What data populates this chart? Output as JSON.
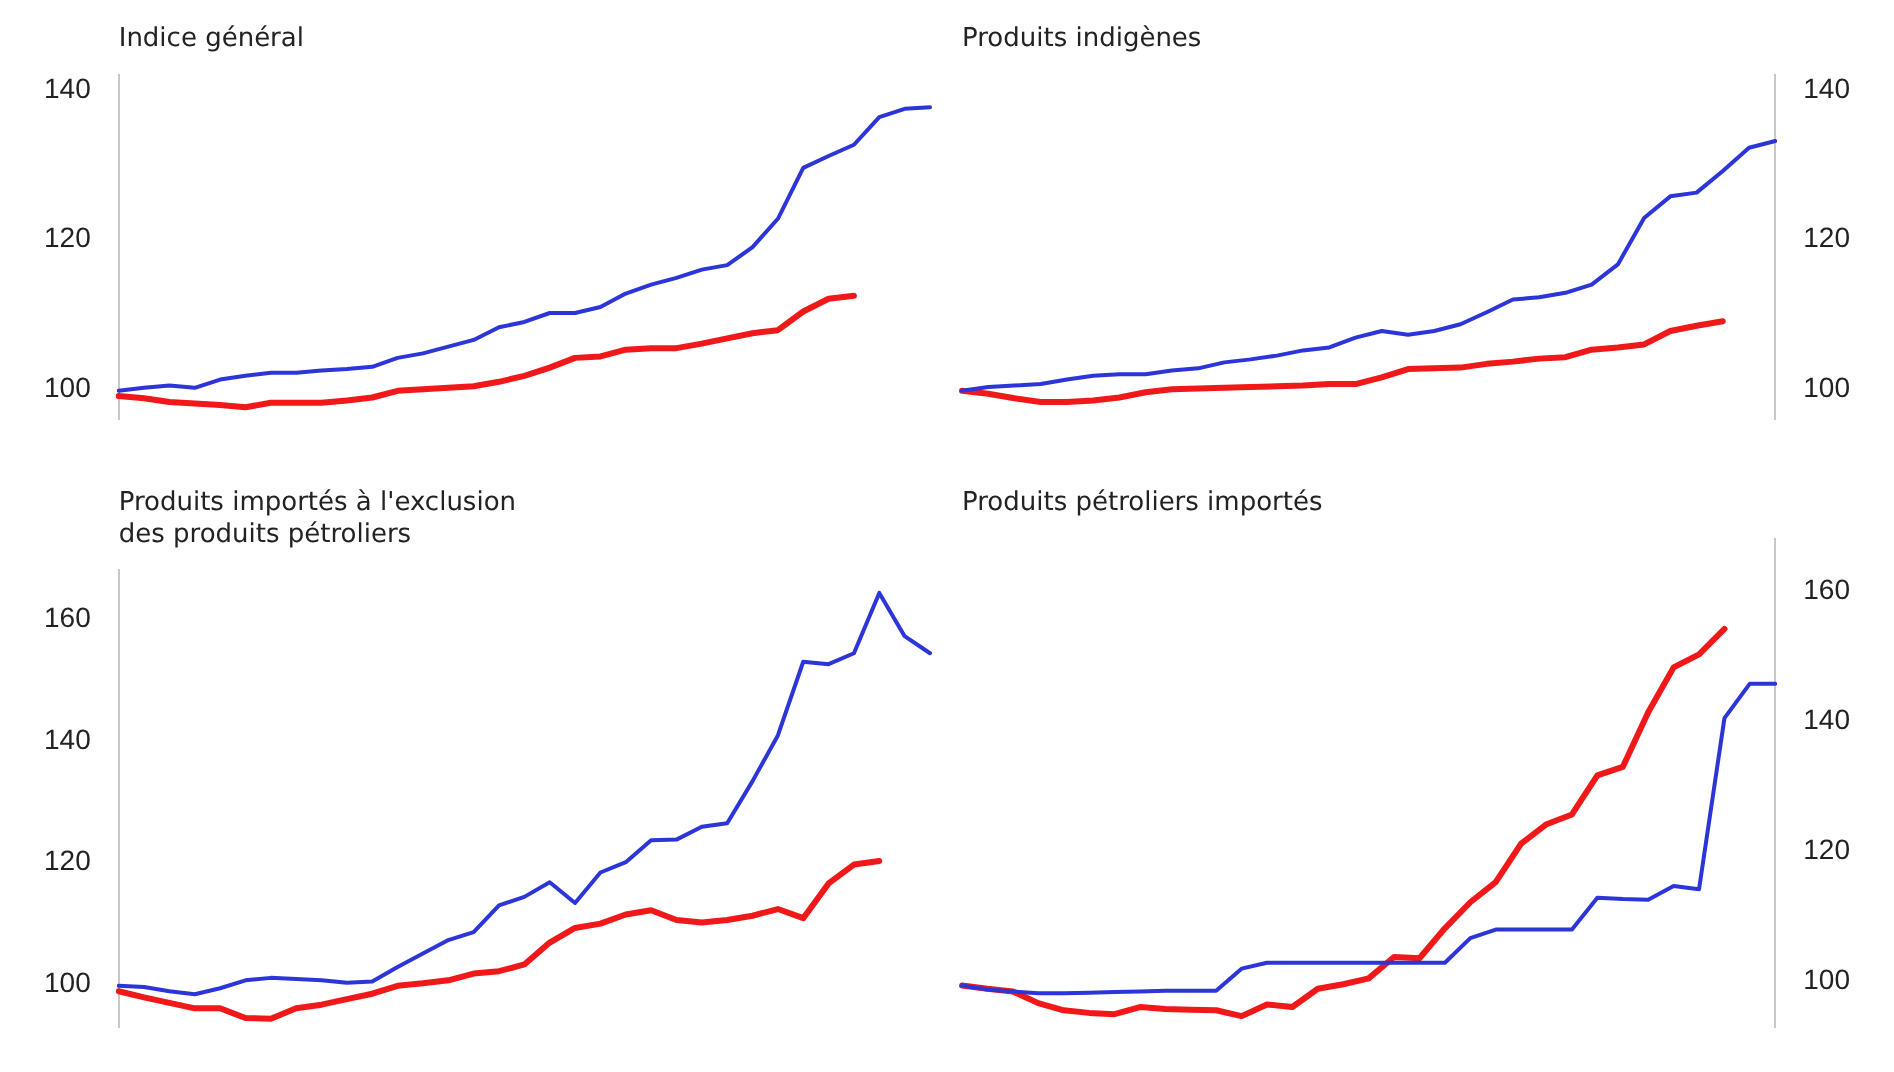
{
  "chart_data": [
    {
      "type": "line",
      "title": "Indice général",
      "categories": [
        null,
        null,
        null,
        null,
        null,
        null,
        null,
        null,
        null,
        null,
        null,
        null,
        null,
        null,
        null,
        null,
        null,
        null,
        null,
        null,
        null,
        null,
        null,
        null,
        null,
        null,
        null,
        null,
        null,
        null,
        null,
        null,
        null
      ],
      "ylim": [
        96,
        142
      ],
      "yticks": [
        100,
        120,
        140
      ],
      "grid": false,
      "legend": false,
      "series": [
        {
          "color": "#2b35d8",
          "values": [
            99.8,
            100.2,
            100.5,
            100.2,
            101.3,
            101.8,
            102.2,
            102.2,
            102.5,
            102.7,
            103,
            104.2,
            104.8,
            105.7,
            106.6,
            108.3,
            109,
            110.2,
            110.2,
            111,
            112.8,
            114,
            114.9,
            116,
            116.6,
            119,
            122.8,
            129.6,
            131.2,
            132.7,
            136.4,
            137.5,
            137.7
          ]
        },
        {
          "color": "#f01818",
          "values": [
            99.1,
            98.8,
            98.3,
            98.1,
            97.9,
            97.6,
            98.2,
            98.2,
            98.2,
            98.5,
            98.9,
            99.8,
            100,
            100.2,
            100.4,
            101,
            101.8,
            102.9,
            104.2,
            104.4,
            105.3,
            105.5,
            105.5,
            106.1,
            106.8,
            107.5,
            107.9,
            110.4,
            112.1,
            112.5,
            null,
            null,
            null
          ]
        }
      ]
    },
    {
      "type": "line",
      "title": "Produits indigènes",
      "categories": [
        null,
        null,
        null,
        null,
        null,
        null,
        null,
        null,
        null,
        null,
        null,
        null,
        null,
        null,
        null,
        null,
        null,
        null,
        null,
        null,
        null,
        null,
        null,
        null,
        null,
        null,
        null,
        null,
        null,
        null,
        null,
        null
      ],
      "ylim": [
        96,
        142
      ],
      "yticks": [
        100,
        120,
        140
      ],
      "grid": false,
      "legend": false,
      "series": [
        {
          "color": "#2b35d8",
          "values": [
            99.8,
            100.3,
            100.5,
            100.7,
            101.3,
            101.8,
            102,
            102,
            102.5,
            102.8,
            103.6,
            104,
            104.5,
            105.2,
            105.6,
            106.9,
            107.8,
            107.3,
            107.8,
            108.7,
            110.3,
            112,
            112.3,
            112.9,
            114,
            116.7,
            122.9,
            125.8,
            126.3,
            129.2,
            132.3,
            133.2
          ]
        },
        {
          "color": "#f01818",
          "values": [
            99.8,
            99.4,
            98.8,
            98.3,
            98.3,
            98.5,
            98.9,
            99.6,
            100,
            100.1,
            100.2,
            100.3,
            100.4,
            100.5,
            100.7,
            100.7,
            101.6,
            102.7,
            102.8,
            102.9,
            103.4,
            103.7,
            104.1,
            104.3,
            105.3,
            105.6,
            106,
            107.8,
            108.5,
            109.1,
            null,
            null
          ]
        }
      ]
    },
    {
      "type": "line",
      "title": "Produits importés à l'exclusion des produits pétroliers",
      "categories": [
        null,
        null,
        null,
        null,
        null,
        null,
        null,
        null,
        null,
        null,
        null,
        null,
        null,
        null,
        null,
        null,
        null,
        null,
        null,
        null,
        null,
        null,
        null,
        null,
        null,
        null,
        null,
        null,
        null,
        null,
        null,
        null,
        null
      ],
      "ylim": [
        93,
        168
      ],
      "yticks": [
        100,
        120,
        140,
        160
      ],
      "grid": false,
      "legend": false,
      "series": [
        {
          "color": "#2b35d8",
          "values": [
            99.8,
            99.6,
            98.9,
            98.4,
            99.4,
            100.7,
            101.1,
            100.9,
            100.7,
            100.3,
            100.5,
            102.9,
            105.1,
            107.3,
            108.6,
            113,
            114.4,
            116.8,
            113.4,
            118.4,
            120.1,
            123.7,
            123.8,
            125.9,
            126.5,
            133.4,
            140.9,
            153,
            152.6,
            154.4,
            164.3,
            157.2,
            154.4
          ]
        },
        {
          "color": "#f01818",
          "values": [
            98.9,
            97.9,
            97,
            96.1,
            96.1,
            94.5,
            94.4,
            96.1,
            96.7,
            97.6,
            98.5,
            99.8,
            100.2,
            100.7,
            101.8,
            102.2,
            103.3,
            106.9,
            109.3,
            110,
            111.5,
            112.2,
            110.6,
            110.2,
            110.6,
            111.3,
            112.4,
            110.9,
            116.6,
            119.7,
            120.3,
            null,
            null
          ]
        }
      ]
    },
    {
      "type": "line",
      "title": "Produits pétroliers importés",
      "categories": [
        null,
        null,
        null,
        null,
        null,
        null,
        null,
        null,
        null,
        null,
        null,
        null,
        null,
        null,
        null,
        null,
        null,
        null,
        null,
        null,
        null,
        null,
        null,
        null,
        null,
        null,
        null,
        null,
        null,
        null,
        null,
        null,
        null
      ],
      "ylim": [
        93,
        168
      ],
      "yticks": [
        100,
        120,
        140,
        160
      ],
      "grid": false,
      "legend": false,
      "series": [
        {
          "color": "#2b35d8",
          "values": [
            99.4,
            98.8,
            98.5,
            98.2,
            98.2,
            98.3,
            98.4,
            98.5,
            98.6,
            98.6,
            98.6,
            102,
            102.9,
            102.9,
            102.9,
            102.9,
            102.9,
            102.9,
            102.9,
            102.9,
            106.7,
            108,
            108,
            108,
            108,
            112.9,
            112.7,
            112.6,
            114.7,
            114.2,
            140.5,
            145.8,
            145.8
          ]
        },
        {
          "color": "#f01818",
          "values": [
            99.4,
            98.9,
            98.5,
            96.7,
            95.6,
            95.2,
            95,
            96.1,
            95.8,
            95.7,
            95.6,
            94.7,
            96.5,
            96.1,
            98.9,
            99.6,
            100.5,
            103.8,
            103.6,
            108.2,
            112.2,
            115.3,
            121.2,
            124.2,
            125.7,
            131.7,
            133,
            141.4,
            148.3,
            150.3,
            154.2,
            null,
            null
          ]
        }
      ]
    }
  ]
}
